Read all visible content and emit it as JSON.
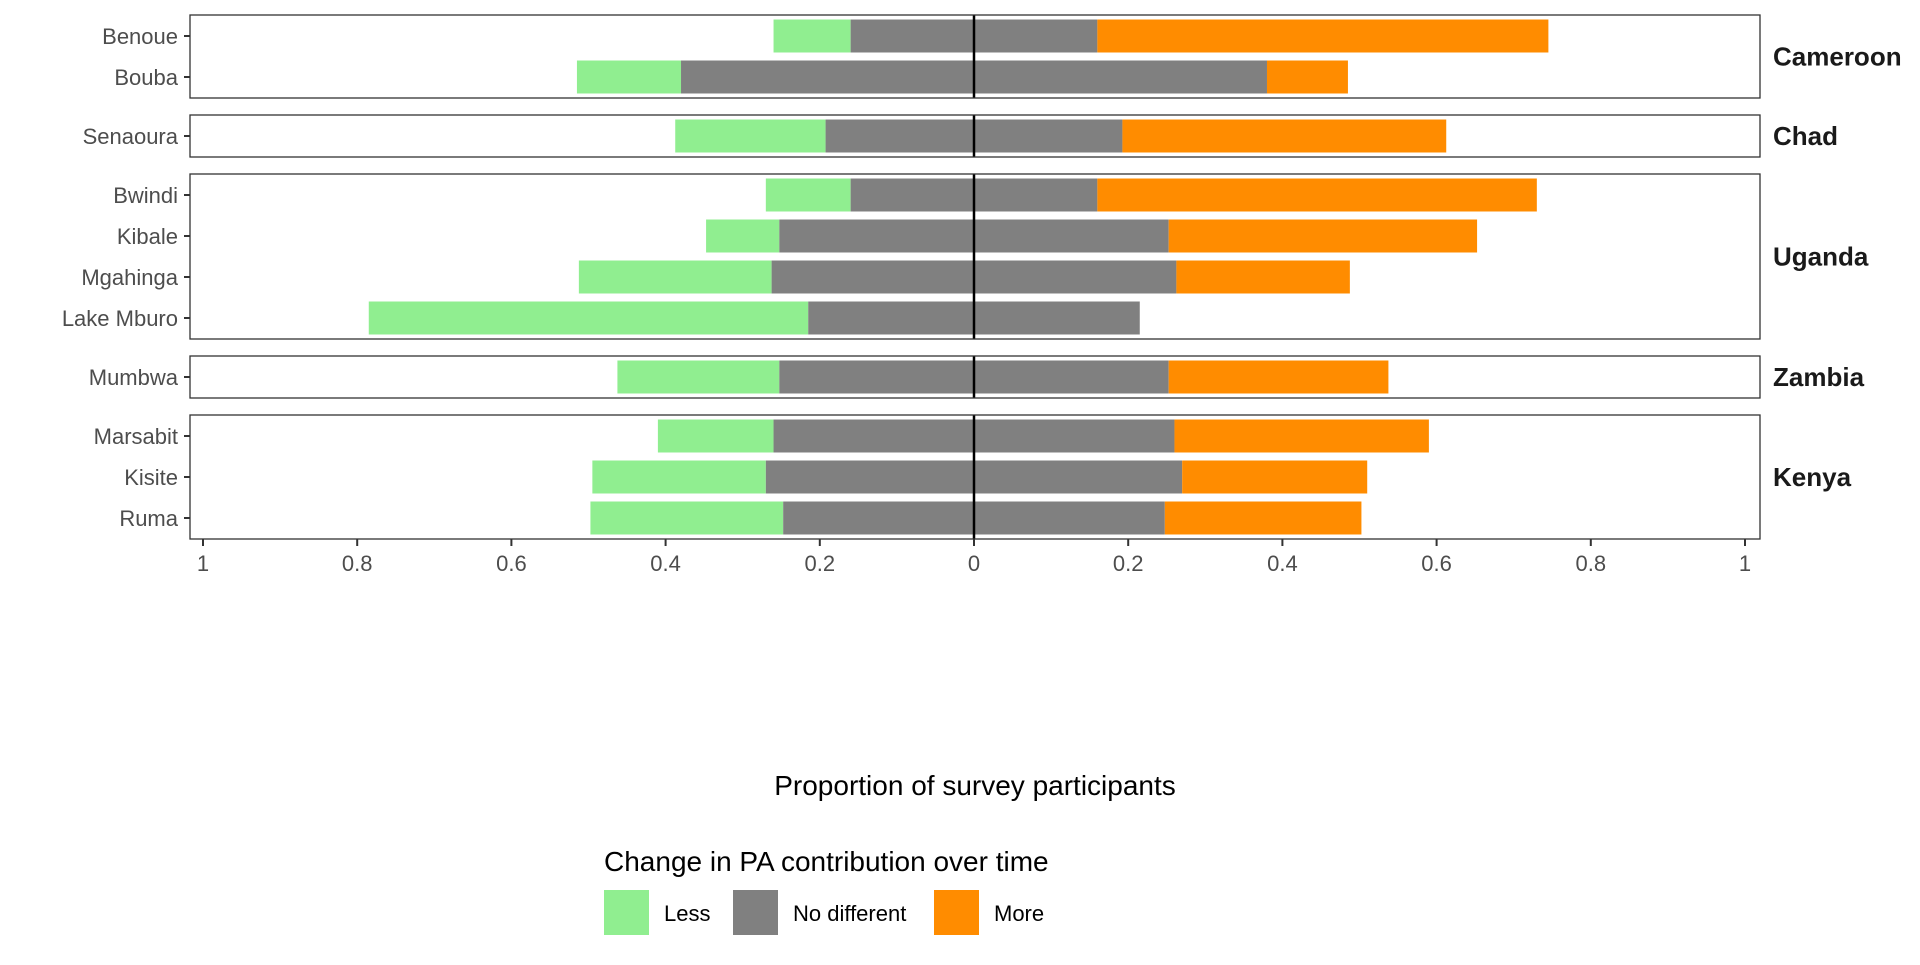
{
  "chart_data": {
    "type": "bar",
    "subtype": "diverging-stacked-horizontal",
    "xlabel": "Proportion of survey participants",
    "ylabel": "",
    "xlim": [
      -1,
      1
    ],
    "xticks": [
      -1,
      -0.8,
      -0.6,
      -0.4,
      -0.2,
      0,
      0.2,
      0.4,
      0.6,
      0.8,
      1
    ],
    "xtick_labels": [
      "1",
      "0.8",
      "0.6",
      "0.4",
      "0.2",
      "0",
      "0.2",
      "0.4",
      "0.6",
      "0.8",
      "1"
    ],
    "grid": false,
    "legend": {
      "title": "Change in PA contribution over time",
      "position": "bottom",
      "items": [
        {
          "key": "less",
          "label": "Less",
          "color": "#90ee90"
        },
        {
          "key": "no_different",
          "label": "No different",
          "color": "#808080"
        },
        {
          "key": "more",
          "label": "More",
          "color": "#ff8c00"
        }
      ]
    },
    "facets": [
      {
        "name": "Cameroon",
        "rows": [
          {
            "label": "Benoue",
            "less": 0.1,
            "no_different": 0.32,
            "more": 0.585
          },
          {
            "label": "Bouba",
            "less": 0.135,
            "no_different": 0.76,
            "more": 0.105
          }
        ]
      },
      {
        "name": "Chad",
        "rows": [
          {
            "label": "Senaoura",
            "less": 0.195,
            "no_different": 0.385,
            "more": 0.42
          }
        ]
      },
      {
        "name": "Uganda",
        "rows": [
          {
            "label": "Bwindi",
            "less": 0.11,
            "no_different": 0.32,
            "more": 0.57
          },
          {
            "label": "Kibale",
            "less": 0.095,
            "no_different": 0.505,
            "more": 0.4
          },
          {
            "label": "Mgahinga",
            "less": 0.25,
            "no_different": 0.525,
            "more": 0.225
          },
          {
            "label": "Lake Mburo",
            "less": 0.57,
            "no_different": 0.43,
            "more": 0
          }
        ]
      },
      {
        "name": "Zambia",
        "rows": [
          {
            "label": "Mumbwa",
            "less": 0.21,
            "no_different": 0.505,
            "more": 0.285
          }
        ]
      },
      {
        "name": "Kenya",
        "rows": [
          {
            "label": "Marsabit",
            "less": 0.15,
            "no_different": 0.52,
            "more": 0.33
          },
          {
            "label": "Kisite",
            "less": 0.225,
            "no_different": 0.54,
            "more": 0.24
          },
          {
            "label": "Ruma",
            "less": 0.25,
            "no_different": 0.495,
            "more": 0.255
          }
        ]
      }
    ]
  }
}
